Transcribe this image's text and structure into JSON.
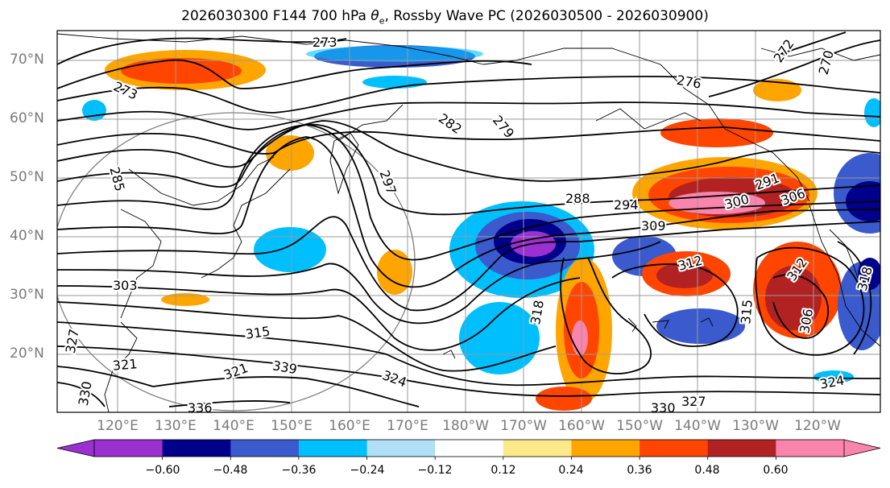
{
  "title": {
    "prefix": "2026030300 F144 700 hPa ",
    "symbol": "θ",
    "subscript": "e",
    "suffix": ", Rossby Wave PC (2026030500 - 2026030900)"
  },
  "axes": {
    "lat_labels": [
      "70°N",
      "60°N",
      "50°N",
      "40°N",
      "30°N",
      "20°N"
    ],
    "lon_labels": [
      "120°E",
      "130°E",
      "140°E",
      "150°E",
      "160°E",
      "170°E",
      "180°W",
      "170°W",
      "160°W",
      "150°W",
      "140°W",
      "130°W",
      "120°W"
    ]
  },
  "colorbar": {
    "colors": [
      "#9b30d0",
      "#00008b",
      "#3a5acd",
      "#00bfff",
      "#b0e0f6",
      "#ffffff",
      "#fde88a",
      "#ffa500",
      "#ff4500",
      "#b22222",
      "#f984ac"
    ],
    "tick_labels": [
      "−0.60",
      "−0.48",
      "−0.36",
      "−0.24",
      "−0.12",
      "0.12",
      "0.24",
      "0.36",
      "0.48",
      "0.60"
    ]
  },
  "contour_labels": [
    "273",
    "273",
    "276",
    "272",
    "270",
    "282",
    "279",
    "285",
    "297",
    "288",
    "294",
    "291",
    "300",
    "306",
    "309",
    "303",
    "312",
    "312",
    "315",
    "315",
    "318",
    "318",
    "321",
    "321",
    "324",
    "324",
    "327",
    "330",
    "330",
    "336",
    "339",
    "306",
    "327"
  ],
  "field_colors": {
    "positive_strong": "#ff4500",
    "positive_mid": "#ffa500",
    "positive_max": "#f984ac",
    "negative_strong": "#00008b",
    "negative_mid": "#00bfff"
  }
}
